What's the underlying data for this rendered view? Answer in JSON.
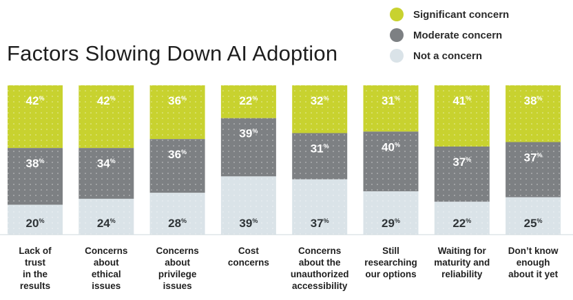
{
  "title": "Factors Slowing Down AI Adoption",
  "legend": [
    {
      "label": "Significant concern",
      "color": "#c8d22f"
    },
    {
      "label": "Moderate concern",
      "color": "#7d8083"
    },
    {
      "label": "Not a concern",
      "color": "#dae3e8"
    }
  ],
  "chart_data": {
    "type": "bar",
    "stacked": true,
    "orientation": "vertical",
    "value_suffix": "%",
    "categories": [
      "Lack of\ntrust\nin the\nresults",
      "Concerns\nabout\nethical\nissues",
      "Concerns\nabout\nprivilege\nissues",
      "Cost\nconcerns",
      "Concerns\nabout the\nunauthorized\naccessibility",
      "Still\nresearching\nour options",
      "Waiting for\nmaturity and\nreliability",
      "Don’t know\nenough\nabout it yet"
    ],
    "series": [
      {
        "name": "Significant concern",
        "color": "#c8d22f",
        "values": [
          42,
          42,
          36,
          22,
          32,
          31,
          41,
          38
        ]
      },
      {
        "name": "Moderate concern",
        "color": "#7d8083",
        "values": [
          38,
          34,
          36,
          39,
          31,
          40,
          37,
          37
        ]
      },
      {
        "name": "Not a concern",
        "color": "#dae3e8",
        "values": [
          20,
          24,
          28,
          39,
          37,
          29,
          22,
          25
        ]
      }
    ],
    "ylim": [
      0,
      100
    ],
    "grid": false,
    "legend_position": "top-right"
  }
}
